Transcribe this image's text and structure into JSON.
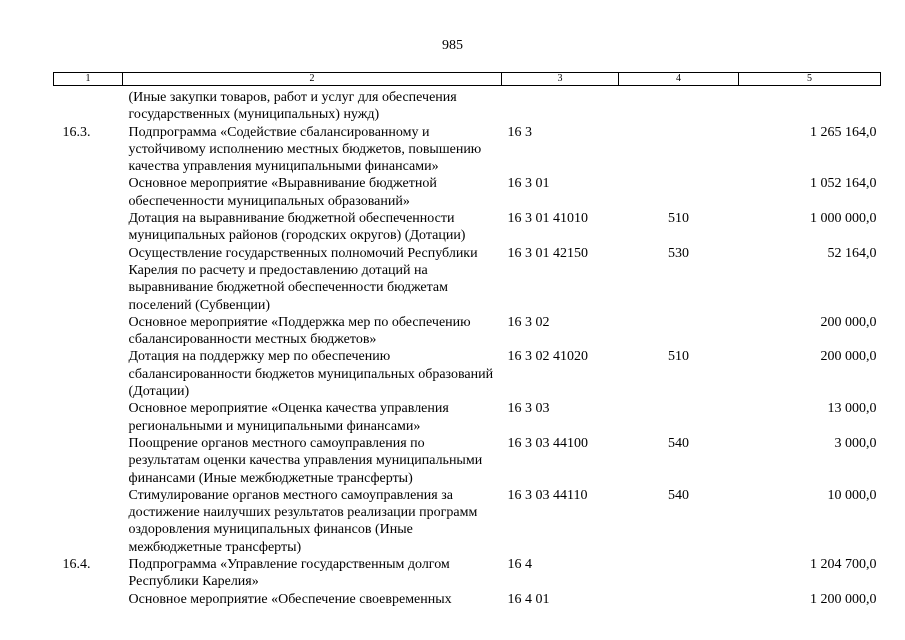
{
  "page_number": "985",
  "columns": [
    "1",
    "2",
    "3",
    "4",
    "5"
  ],
  "rows": [
    {
      "num": "",
      "text": "(Иные закупки товаров, работ и услуг для обеспечения государственных (муниципальных) нужд)",
      "code": "",
      "type": "",
      "sum": ""
    },
    {
      "num": "16.3.",
      "text": "Подпрограмма «Содействие сбалансированному и устойчивому исполнению местных бюджетов, повышению качества управления муниципальными финансами»",
      "code": "16 3",
      "type": "",
      "sum": "1 265 164,0"
    },
    {
      "num": "",
      "text": "Основное мероприятие «Выравнивание бюджетной обеспеченности муниципальных образований»",
      "code": "16 3 01",
      "type": "",
      "sum": "1 052 164,0"
    },
    {
      "num": "",
      "text": "Дотация на выравнивание бюджетной обеспеченности муниципальных районов (городских округов) (Дотации)",
      "code": "16 3 01 41010",
      "type": "510",
      "sum": "1 000 000,0"
    },
    {
      "num": "",
      "text": "Осуществление государственных полномочий Республики Карелия по расчету и предоставлению дотаций на выравнивание бюджетной обеспеченности бюджетам поселений (Субвенции)",
      "code": "16 3 01 42150",
      "type": "530",
      "sum": "52 164,0"
    },
    {
      "num": "",
      "text": "Основное мероприятие «Поддержка мер по обеспечению сбалансированности местных бюджетов»",
      "code": "16 3 02",
      "type": "",
      "sum": "200 000,0"
    },
    {
      "num": "",
      "text": "Дотация на поддержку мер по обеспечению сбалансированности бюджетов муниципальных образований (Дотации)",
      "code": "16 3 02 41020",
      "type": "510",
      "sum": "200 000,0"
    },
    {
      "num": "",
      "text": "Основное мероприятие «Оценка качества управления региональными и муниципальными финансами»",
      "code": "16 3 03",
      "type": "",
      "sum": "13 000,0"
    },
    {
      "num": "",
      "text": "Поощрение органов местного самоуправления по результатам оценки качества управления муниципальными финансами (Иные межбюджетные трансферты)",
      "code": "16 3 03 44100",
      "type": "540",
      "sum": "3 000,0"
    },
    {
      "num": "",
      "text": "Стимулирование органов местного самоуправления за достижение наилучших результатов реализации программ оздоровления муниципальных финансов (Иные межбюджетные трансферты)",
      "code": "16 3 03 44110",
      "type": "540",
      "sum": "10 000,0"
    },
    {
      "num": "16.4.",
      "text": "Подпрограмма «Управление государственным долгом Республики Карелия»",
      "code": "16 4",
      "type": "",
      "sum": "1 204 700,0"
    },
    {
      "num": "",
      "text": "Основное мероприятие «Обеспечение своевременных",
      "code": "16 4 01",
      "type": "",
      "sum": "1 200 000,0"
    }
  ]
}
